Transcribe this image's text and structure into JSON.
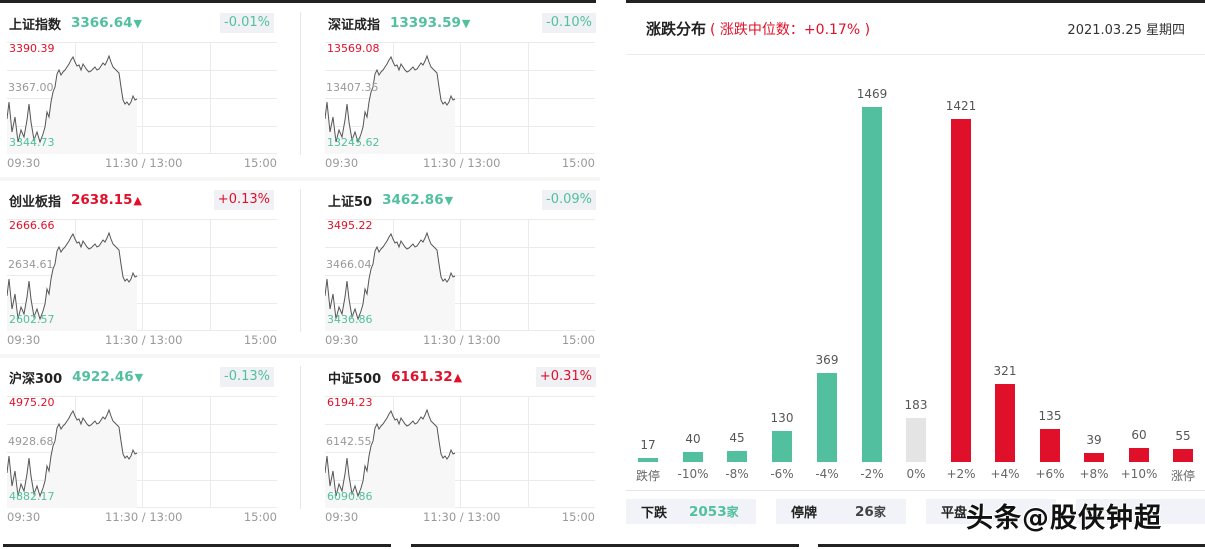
{
  "time_axis": {
    "start": "09:30",
    "mid": "11:30 / 13:00",
    "end": "15:00"
  },
  "indices": [
    {
      "name": "上证指数",
      "value": "3366.64",
      "arrow": "▼",
      "dir": "down",
      "change": "-0.01%",
      "high": "3390.39",
      "mid": "3367.00",
      "low": "3344.73"
    },
    {
      "name": "深证成指",
      "value": "13393.59",
      "arrow": "▼",
      "dir": "down",
      "change": "-0.10%",
      "high": "13569.08",
      "mid": "13407.35",
      "low": "13245.62"
    },
    {
      "name": "创业板指",
      "value": "2638.15",
      "arrow": "▲",
      "dir": "up",
      "change": "+0.13%",
      "high": "2666.66",
      "mid": "2634.61",
      "low": "2602.57"
    },
    {
      "name": "上证50",
      "value": "3462.86",
      "arrow": "▼",
      "dir": "down",
      "change": "-0.09%",
      "high": "3495.22",
      "mid": "3466.04",
      "low": "3436.86"
    },
    {
      "name": "沪深300",
      "value": "4922.46",
      "arrow": "▼",
      "dir": "down",
      "change": "-0.13%",
      "high": "4975.20",
      "mid": "4928.68",
      "low": "4882.17"
    },
    {
      "name": "中证500",
      "value": "6161.32",
      "arrow": "▲",
      "dir": "up",
      "change": "+0.31%",
      "high": "6194.23",
      "mid": "6142.55",
      "low": "6090.86"
    }
  ],
  "distribution": {
    "title": "涨跌分布",
    "subtitle": "( 涨跌中位数：+0.17% )",
    "date": "2021.03.25 星期四",
    "stats": [
      {
        "label": "下跌",
        "value": "2053",
        "unit": "家",
        "color": "#52c09e"
      },
      {
        "label": "停牌",
        "value": "26",
        "unit": "家",
        "color": "#444444"
      },
      {
        "label": "平盘",
        "value": "",
        "unit": "",
        "color": "#444444"
      },
      {
        "label": "",
        "value": "",
        "unit": "",
        "color": "#e0102a"
      }
    ]
  },
  "watermark": "头条@股侠钟超",
  "colors": {
    "down": "#52c09e",
    "up": "#e0102a",
    "flat": "#e4e4e4"
  },
  "chart_data": {
    "type": "bar",
    "title": "涨跌分布",
    "subtitle": "涨跌中位数：+0.17%",
    "categories": [
      "跌停",
      "-10%",
      "-8%",
      "-6%",
      "-4%",
      "-2%",
      "0%",
      "+2%",
      "+4%",
      "+6%",
      "+8%",
      "+10%",
      "涨停"
    ],
    "values": [
      17,
      40,
      45,
      130,
      369,
      1469,
      183,
      1421,
      321,
      135,
      39,
      60,
      55
    ],
    "bar_colors": [
      "#52c09e",
      "#52c09e",
      "#52c09e",
      "#52c09e",
      "#52c09e",
      "#52c09e",
      "#e4e4e4",
      "#e0102a",
      "#e0102a",
      "#e0102a",
      "#e0102a",
      "#e0102a",
      "#e0102a"
    ],
    "xlabel": "",
    "ylabel": "",
    "grid": false,
    "legend": "none"
  }
}
